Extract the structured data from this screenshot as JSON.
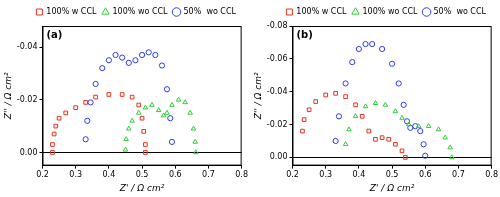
{
  "chart_data": [
    {
      "type": "scatter",
      "title": "(a)",
      "x_label": "Z' / Ω cm²",
      "y_label": "Z'' / Ω cm²",
      "xlim": [
        0.2,
        0.8
      ],
      "xticks": [
        0.2,
        0.3,
        0.4,
        0.5,
        0.6,
        0.7,
        0.8
      ],
      "ylim": [
        0.005,
        -0.048
      ],
      "yticks": [
        {
          "value": 0,
          "label": "0.00"
        },
        -0.02,
        -0.04
      ],
      "grid": false,
      "legend": "upper right",
      "series": [
        {
          "name": "100% w CCL",
          "color": "#e8321e",
          "marker": "square",
          "x": [
            0.23,
            0.23,
            0.235,
            0.24,
            0.25,
            0.27,
            0.3,
            0.33,
            0.36,
            0.4,
            0.44,
            0.47,
            0.49,
            0.5,
            0.505,
            0.51,
            0.51
          ],
          "values": [
            0.0,
            -0.003,
            -0.007,
            -0.01,
            -0.013,
            -0.015,
            -0.017,
            -0.019,
            -0.021,
            -0.022,
            -0.022,
            -0.021,
            -0.018,
            -0.013,
            -0.008,
            -0.003,
            0.0
          ]
        },
        {
          "name": "100% wo CCL",
          "color": "#2fcc3a",
          "marker": "triangle",
          "x": [
            0.45,
            0.452,
            0.46,
            0.47,
            0.49,
            0.51,
            0.53,
            0.55,
            0.565,
            0.575,
            0.59,
            0.61,
            0.63,
            0.645,
            0.655,
            0.66,
            0.662
          ],
          "values": [
            -0.001,
            -0.005,
            -0.009,
            -0.012,
            -0.015,
            -0.017,
            -0.018,
            -0.016,
            -0.014,
            -0.015,
            -0.018,
            -0.02,
            -0.019,
            -0.015,
            -0.009,
            -0.004,
            0.0
          ]
        },
        {
          "name": "50%  wo CCL",
          "color": "#2b3cf0",
          "marker": "circle",
          "x": [
            0.33,
            0.335,
            0.345,
            0.36,
            0.38,
            0.4,
            0.42,
            0.44,
            0.46,
            0.48,
            0.5,
            0.52,
            0.54,
            0.56,
            0.575,
            0.585,
            0.59
          ],
          "values": [
            -0.005,
            -0.012,
            -0.019,
            -0.026,
            -0.032,
            -0.035,
            -0.037,
            -0.036,
            -0.034,
            -0.035,
            -0.037,
            -0.038,
            -0.037,
            -0.033,
            -0.024,
            -0.013,
            -0.004
          ]
        }
      ]
    },
    {
      "type": "scatter",
      "title": "(b)",
      "x_label": "Z' / Ω cm²",
      "y_label": "Z'' / Ω cm²",
      "xlim": [
        0.2,
        0.8
      ],
      "xticks": [
        0.2,
        0.3,
        0.4,
        0.5,
        0.6,
        0.7,
        0.8
      ],
      "ylim": [
        0.005,
        -0.08
      ],
      "yticks": [
        {
          "value": 0,
          "label": "0.00"
        },
        -0.02,
        -0.04,
        -0.06,
        -0.08
      ],
      "grid": false,
      "legend": "upper right",
      "series": [
        {
          "name": "100% w CCL",
          "color": "#e8321e",
          "marker": "square",
          "x": [
            0.23,
            0.235,
            0.25,
            0.27,
            0.3,
            0.33,
            0.36,
            0.39,
            0.41,
            0.43,
            0.45,
            0.47,
            0.49,
            0.51,
            0.53,
            0.54
          ],
          "values": [
            -0.016,
            -0.023,
            -0.029,
            -0.034,
            -0.038,
            -0.039,
            -0.037,
            -0.032,
            -0.025,
            -0.016,
            -0.011,
            -0.012,
            -0.011,
            -0.008,
            -0.004,
            0.0
          ]
        },
        {
          "name": "100% wo CCL",
          "color": "#2fcc3a",
          "marker": "triangle",
          "x": [
            0.36,
            0.37,
            0.39,
            0.42,
            0.45,
            0.48,
            0.51,
            0.53,
            0.55,
            0.58,
            0.61,
            0.64,
            0.66,
            0.675,
            0.68
          ],
          "values": [
            -0.008,
            -0.017,
            -0.025,
            -0.031,
            -0.033,
            -0.032,
            -0.028,
            -0.024,
            -0.02,
            -0.019,
            -0.019,
            -0.017,
            -0.012,
            -0.006,
            0.0
          ]
        },
        {
          "name": "50%  wo CCL",
          "color": "#2b3cf0",
          "marker": "circle",
          "x": [
            0.33,
            0.34,
            0.36,
            0.38,
            0.4,
            0.42,
            0.44,
            0.47,
            0.5,
            0.52,
            0.535,
            0.545,
            0.555,
            0.57,
            0.585,
            0.595,
            0.6
          ],
          "values": [
            -0.01,
            -0.025,
            -0.045,
            -0.058,
            -0.066,
            -0.069,
            -0.069,
            -0.066,
            -0.057,
            -0.045,
            -0.032,
            -0.022,
            -0.018,
            -0.019,
            -0.016,
            -0.008,
            -0.001
          ]
        }
      ]
    }
  ]
}
